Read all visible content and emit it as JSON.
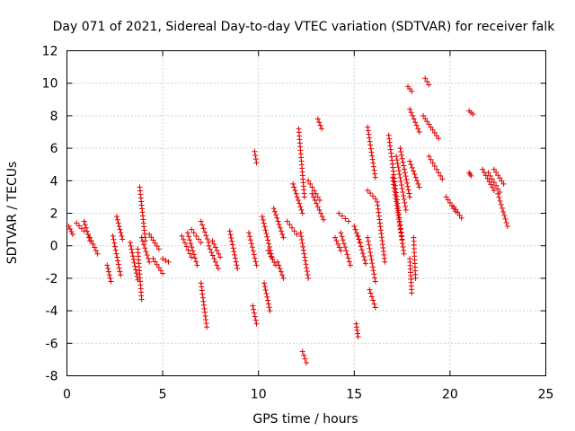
{
  "chart_data": {
    "type": "scatter",
    "title": "Day 071 of 2021, Sidereal Day-to-day VTEC variation (SDTVAR) for receiver falk",
    "xlabel": "GPS time / hours",
    "ylabel": "SDTVAR / TECUs",
    "xlim": [
      0,
      25
    ],
    "ylim": [
      -8,
      12
    ],
    "xticks": [
      "0",
      "5",
      "10",
      "15",
      "20",
      "25"
    ],
    "xtick_values": [
      0,
      5,
      10,
      15,
      20,
      25
    ],
    "yticks": [
      "-8",
      "-6",
      "-4",
      "-2",
      "0",
      "2",
      "4",
      "6",
      "8",
      "10",
      "12"
    ],
    "ytick_values": [
      -8,
      -6,
      -4,
      -2,
      0,
      2,
      4,
      6,
      8,
      10,
      12
    ],
    "grid": true,
    "marker": "+",
    "color": "#e00000",
    "segments": [
      {
        "x": [
          0.1,
          0.3
        ],
        "y": [
          1.2,
          0.7
        ]
      },
      {
        "x": [
          0.5,
          0.9
        ],
        "y": [
          1.4,
          0.9
        ]
      },
      {
        "x": [
          0.9,
          1.2
        ],
        "y": [
          1.5,
          0.3
        ]
      },
      {
        "x": [
          1.2,
          1.6
        ],
        "y": [
          0.5,
          -0.5
        ]
      },
      {
        "x": [
          2.1,
          2.3
        ],
        "y": [
          -1.2,
          -2.2
        ]
      },
      {
        "x": [
          2.4,
          2.8
        ],
        "y": [
          0.6,
          -1.8
        ]
      },
      {
        "x": [
          2.6,
          2.9
        ],
        "y": [
          1.8,
          0.4
        ]
      },
      {
        "x": [
          3.3,
          3.7
        ],
        "y": [
          0.2,
          -2.1
        ]
      },
      {
        "x": [
          3.7,
          3.9
        ],
        "y": [
          -0.2,
          -3.3
        ]
      },
      {
        "x": [
          3.8,
          4.1
        ],
        "y": [
          3.6,
          0.3
        ]
      },
      {
        "x": [
          3.9,
          4.3
        ],
        "y": [
          0.5,
          -1.0
        ]
      },
      {
        "x": [
          4.3,
          4.8
        ],
        "y": [
          0.7,
          -0.2
        ]
      },
      {
        "x": [
          4.5,
          5.0
        ],
        "y": [
          -0.8,
          -1.7
        ]
      },
      {
        "x": [
          5.0,
          5.3
        ],
        "y": [
          -0.8,
          -1.0
        ]
      },
      {
        "x": [
          6.0,
          6.5
        ],
        "y": [
          0.6,
          -0.7
        ]
      },
      {
        "x": [
          6.3,
          6.8
        ],
        "y": [
          0.8,
          -1.2
        ]
      },
      {
        "x": [
          6.5,
          7.0
        ],
        "y": [
          1.0,
          0.2
        ]
      },
      {
        "x": [
          7.0,
          7.3
        ],
        "y": [
          -2.3,
          -5.0
        ]
      },
      {
        "x": [
          7.0,
          7.4
        ],
        "y": [
          1.5,
          0.2
        ]
      },
      {
        "x": [
          7.4,
          7.9
        ],
        "y": [
          0.0,
          -1.4
        ]
      },
      {
        "x": [
          7.6,
          8.0
        ],
        "y": [
          0.3,
          -0.7
        ]
      },
      {
        "x": [
          8.5,
          8.9
        ],
        "y": [
          0.9,
          -1.4
        ]
      },
      {
        "x": [
          9.5,
          9.9
        ],
        "y": [
          0.8,
          -1.2
        ]
      },
      {
        "x": [
          9.7,
          9.9
        ],
        "y": [
          -3.7,
          -4.8
        ]
      },
      {
        "x": [
          9.8,
          9.9
        ],
        "y": [
          5.8,
          5.1
        ]
      },
      {
        "x": [
          10.2,
          10.7
        ],
        "y": [
          1.8,
          -0.7
        ]
      },
      {
        "x": [
          10.3,
          10.6
        ],
        "y": [
          -2.3,
          -4.0
        ]
      },
      {
        "x": [
          10.5,
          10.9
        ],
        "y": [
          -0.3,
          -1.2
        ]
      },
      {
        "x": [
          10.8,
          11.3
        ],
        "y": [
          2.3,
          0.5
        ]
      },
      {
        "x": [
          11.0,
          11.3
        ],
        "y": [
          -1.0,
          -2.0
        ]
      },
      {
        "x": [
          11.5,
          12.0
        ],
        "y": [
          1.5,
          0.7
        ]
      },
      {
        "x": [
          11.8,
          12.3
        ],
        "y": [
          3.8,
          2.0
        ]
      },
      {
        "x": [
          12.1,
          12.4
        ],
        "y": [
          7.2,
          3.0
        ]
      },
      {
        "x": [
          12.2,
          12.6
        ],
        "y": [
          0.8,
          -2.0
        ]
      },
      {
        "x": [
          12.3,
          12.5
        ],
        "y": [
          -6.5,
          -7.2
        ]
      },
      {
        "x": [
          12.6,
          13.2
        ],
        "y": [
          4.0,
          2.8
        ]
      },
      {
        "x": [
          12.8,
          13.4
        ],
        "y": [
          3.2,
          1.6
        ]
      },
      {
        "x": [
          13.1,
          13.3
        ],
        "y": [
          7.8,
          7.2
        ]
      },
      {
        "x": [
          14.0,
          14.3
        ],
        "y": [
          0.5,
          -0.3
        ]
      },
      {
        "x": [
          14.2,
          14.7
        ],
        "y": [
          2.0,
          1.5
        ]
      },
      {
        "x": [
          14.3,
          14.8
        ],
        "y": [
          0.8,
          -1.2
        ]
      },
      {
        "x": [
          15.0,
          15.3
        ],
        "y": [
          1.2,
          0.2
        ]
      },
      {
        "x": [
          15.2,
          15.6
        ],
        "y": [
          0.6,
          -1.1
        ]
      },
      {
        "x": [
          15.1,
          15.2
        ],
        "y": [
          -4.8,
          -5.6
        ]
      },
      {
        "x": [
          15.7,
          16.1
        ],
        "y": [
          7.3,
          4.2
        ]
      },
      {
        "x": [
          15.8,
          16.1
        ],
        "y": [
          -2.7,
          -3.8
        ]
      },
      {
        "x": [
          15.7,
          16.1
        ],
        "y": [
          3.4,
          2.9
        ]
      },
      {
        "x": [
          15.7,
          16.1
        ],
        "y": [
          0.5,
          -2.2
        ]
      },
      {
        "x": [
          16.2,
          16.6
        ],
        "y": [
          2.7,
          -1.0
        ]
      },
      {
        "x": [
          16.8,
          17.5
        ],
        "y": [
          6.8,
          0.4
        ]
      },
      {
        "x": [
          17.0,
          17.6
        ],
        "y": [
          4.2,
          -0.5
        ]
      },
      {
        "x": [
          17.2,
          17.7
        ],
        "y": [
          5.5,
          2.2
        ]
      },
      {
        "x": [
          17.4,
          17.9
        ],
        "y": [
          6.0,
          3.0
        ]
      },
      {
        "x": [
          17.8,
          18.0
        ],
        "y": [
          9.8,
          9.5
        ]
      },
      {
        "x": [
          17.9,
          18.4
        ],
        "y": [
          8.4,
          7.0
        ]
      },
      {
        "x": [
          17.9,
          18.4
        ],
        "y": [
          5.2,
          3.6
        ]
      },
      {
        "x": [
          17.9,
          18.0
        ],
        "y": [
          -0.8,
          -2.9
        ]
      },
      {
        "x": [
          18.1,
          18.2
        ],
        "y": [
          0.5,
          -2.0
        ]
      },
      {
        "x": [
          18.7,
          18.9
        ],
        "y": [
          10.3,
          9.9
        ]
      },
      {
        "x": [
          18.6,
          19.4
        ],
        "y": [
          8.0,
          6.6
        ]
      },
      {
        "x": [
          18.9,
          19.6
        ],
        "y": [
          5.5,
          4.1
        ]
      },
      {
        "x": [
          19.8,
          20.3
        ],
        "y": [
          3.0,
          2.1
        ]
      },
      {
        "x": [
          20.2,
          20.6
        ],
        "y": [
          2.4,
          1.7
        ]
      },
      {
        "x": [
          21.0,
          21.2
        ],
        "y": [
          8.3,
          8.1
        ]
      },
      {
        "x": [
          21.0,
          21.1
        ],
        "y": [
          4.5,
          4.3
        ]
      },
      {
        "x": [
          21.7,
          22.3
        ],
        "y": [
          4.7,
          3.4
        ]
      },
      {
        "x": [
          22.0,
          22.6
        ],
        "y": [
          4.5,
          3.3
        ]
      },
      {
        "x": [
          22.3,
          22.8
        ],
        "y": [
          4.7,
          3.8
        ]
      },
      {
        "x": [
          22.5,
          23.0
        ],
        "y": [
          3.2,
          1.2
        ]
      }
    ]
  }
}
